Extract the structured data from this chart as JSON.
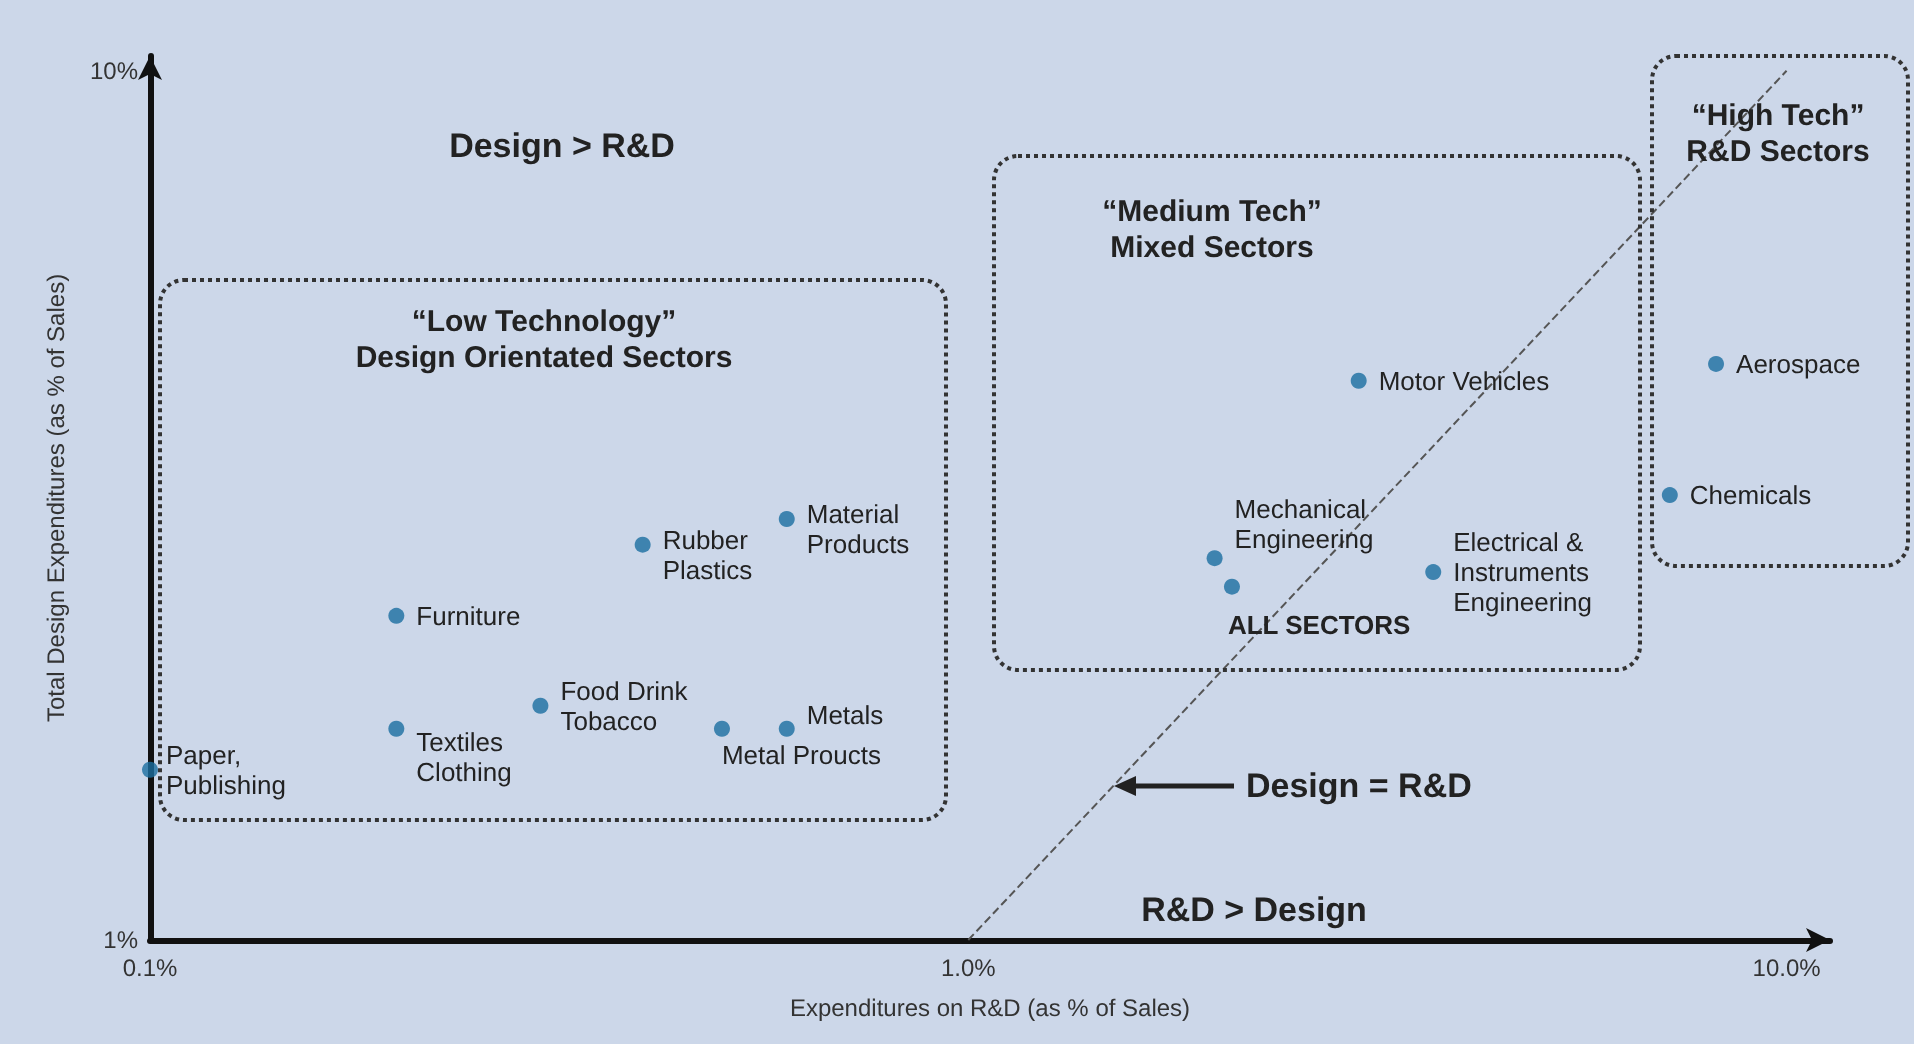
{
  "chart_data": {
    "type": "scatter",
    "xlabel": "Expenditures on R&D (as % of Sales)",
    "ylabel": "Total Design Expenditures (as % of Sales)",
    "log": "xy",
    "grid": false,
    "legend": false,
    "xlim": [
      0.1,
      11.3
    ],
    "ylim": [
      1,
      10.4
    ],
    "xticks": [
      {
        "value": 0.1,
        "label": "0.1%"
      },
      {
        "value": 1,
        "label": "1.0%"
      },
      {
        "value": 10,
        "label": "10.0%"
      }
    ],
    "yticks": [
      {
        "value": 1,
        "label": "1%"
      },
      {
        "value": 10,
        "label": "10%"
      }
    ],
    "series": [
      {
        "color": "#1a6ea0",
        "marker": "circle",
        "x": [
          0.1,
          0.2,
          0.2,
          0.3,
          0.4,
          0.6,
          0.5,
          0.6,
          3.0,
          2.0,
          2.1,
          3.7,
          8.2,
          7.2
        ],
        "values": [
          1.57,
          2.36,
          1.75,
          1.86,
          2.85,
          3.05,
          1.75,
          1.75,
          4.4,
          2.75,
          2.55,
          2.65,
          4.6,
          3.25
        ]
      },
      {
        "type": "line",
        "name": "Design = R&D",
        "color": "#555555",
        "line_style": "dashed",
        "marker": "none",
        "x": [
          1,
          10
        ],
        "values": [
          1,
          10
        ]
      }
    ],
    "annotations": [
      "Design > R&D",
      "“Low Technology”\nDesign Orientated Sectors",
      "“Medium Tech”\nMixed Sectors",
      "“High Tech”\nR&D Sectors",
      "R&D > Design",
      {
        "text": "Paper,\nPublishing",
        "x": 0.1,
        "y": 1.57
      },
      {
        "text": "Furniture",
        "x": 0.2,
        "y": 2.36
      },
      {
        "text": "Textiles\nClothing",
        "x": 0.2,
        "y": 1.75
      },
      {
        "text": "Food Drink\nTobacco",
        "x": 0.3,
        "y": 1.86
      },
      {
        "text": "Rubber\nPlastics",
        "x": 0.4,
        "y": 2.85
      },
      {
        "text": "Material\nProducts",
        "x": 0.6,
        "y": 3.05
      },
      {
        "text": "Metal Proucts",
        "x": 0.5,
        "y": 1.75
      },
      {
        "text": "Metals",
        "x": 0.6,
        "y": 1.75
      },
      {
        "text": "Motor Vehicles",
        "x": 3.0,
        "y": 4.4
      },
      {
        "text": "Mechanical\nEngineering",
        "x": 2.0,
        "y": 2.75
      },
      {
        "text": "ALL SECTORS",
        "x": 2.1,
        "y": 2.55
      },
      {
        "text": "Electrical &\nInstruments\nEngineering",
        "x": 3.7,
        "y": 2.65
      },
      {
        "text": "Aerospace",
        "x": 8.2,
        "y": 4.6
      },
      {
        "text": "Chemicals",
        "x": 7.2,
        "y": 3.25
      }
    ]
  }
}
